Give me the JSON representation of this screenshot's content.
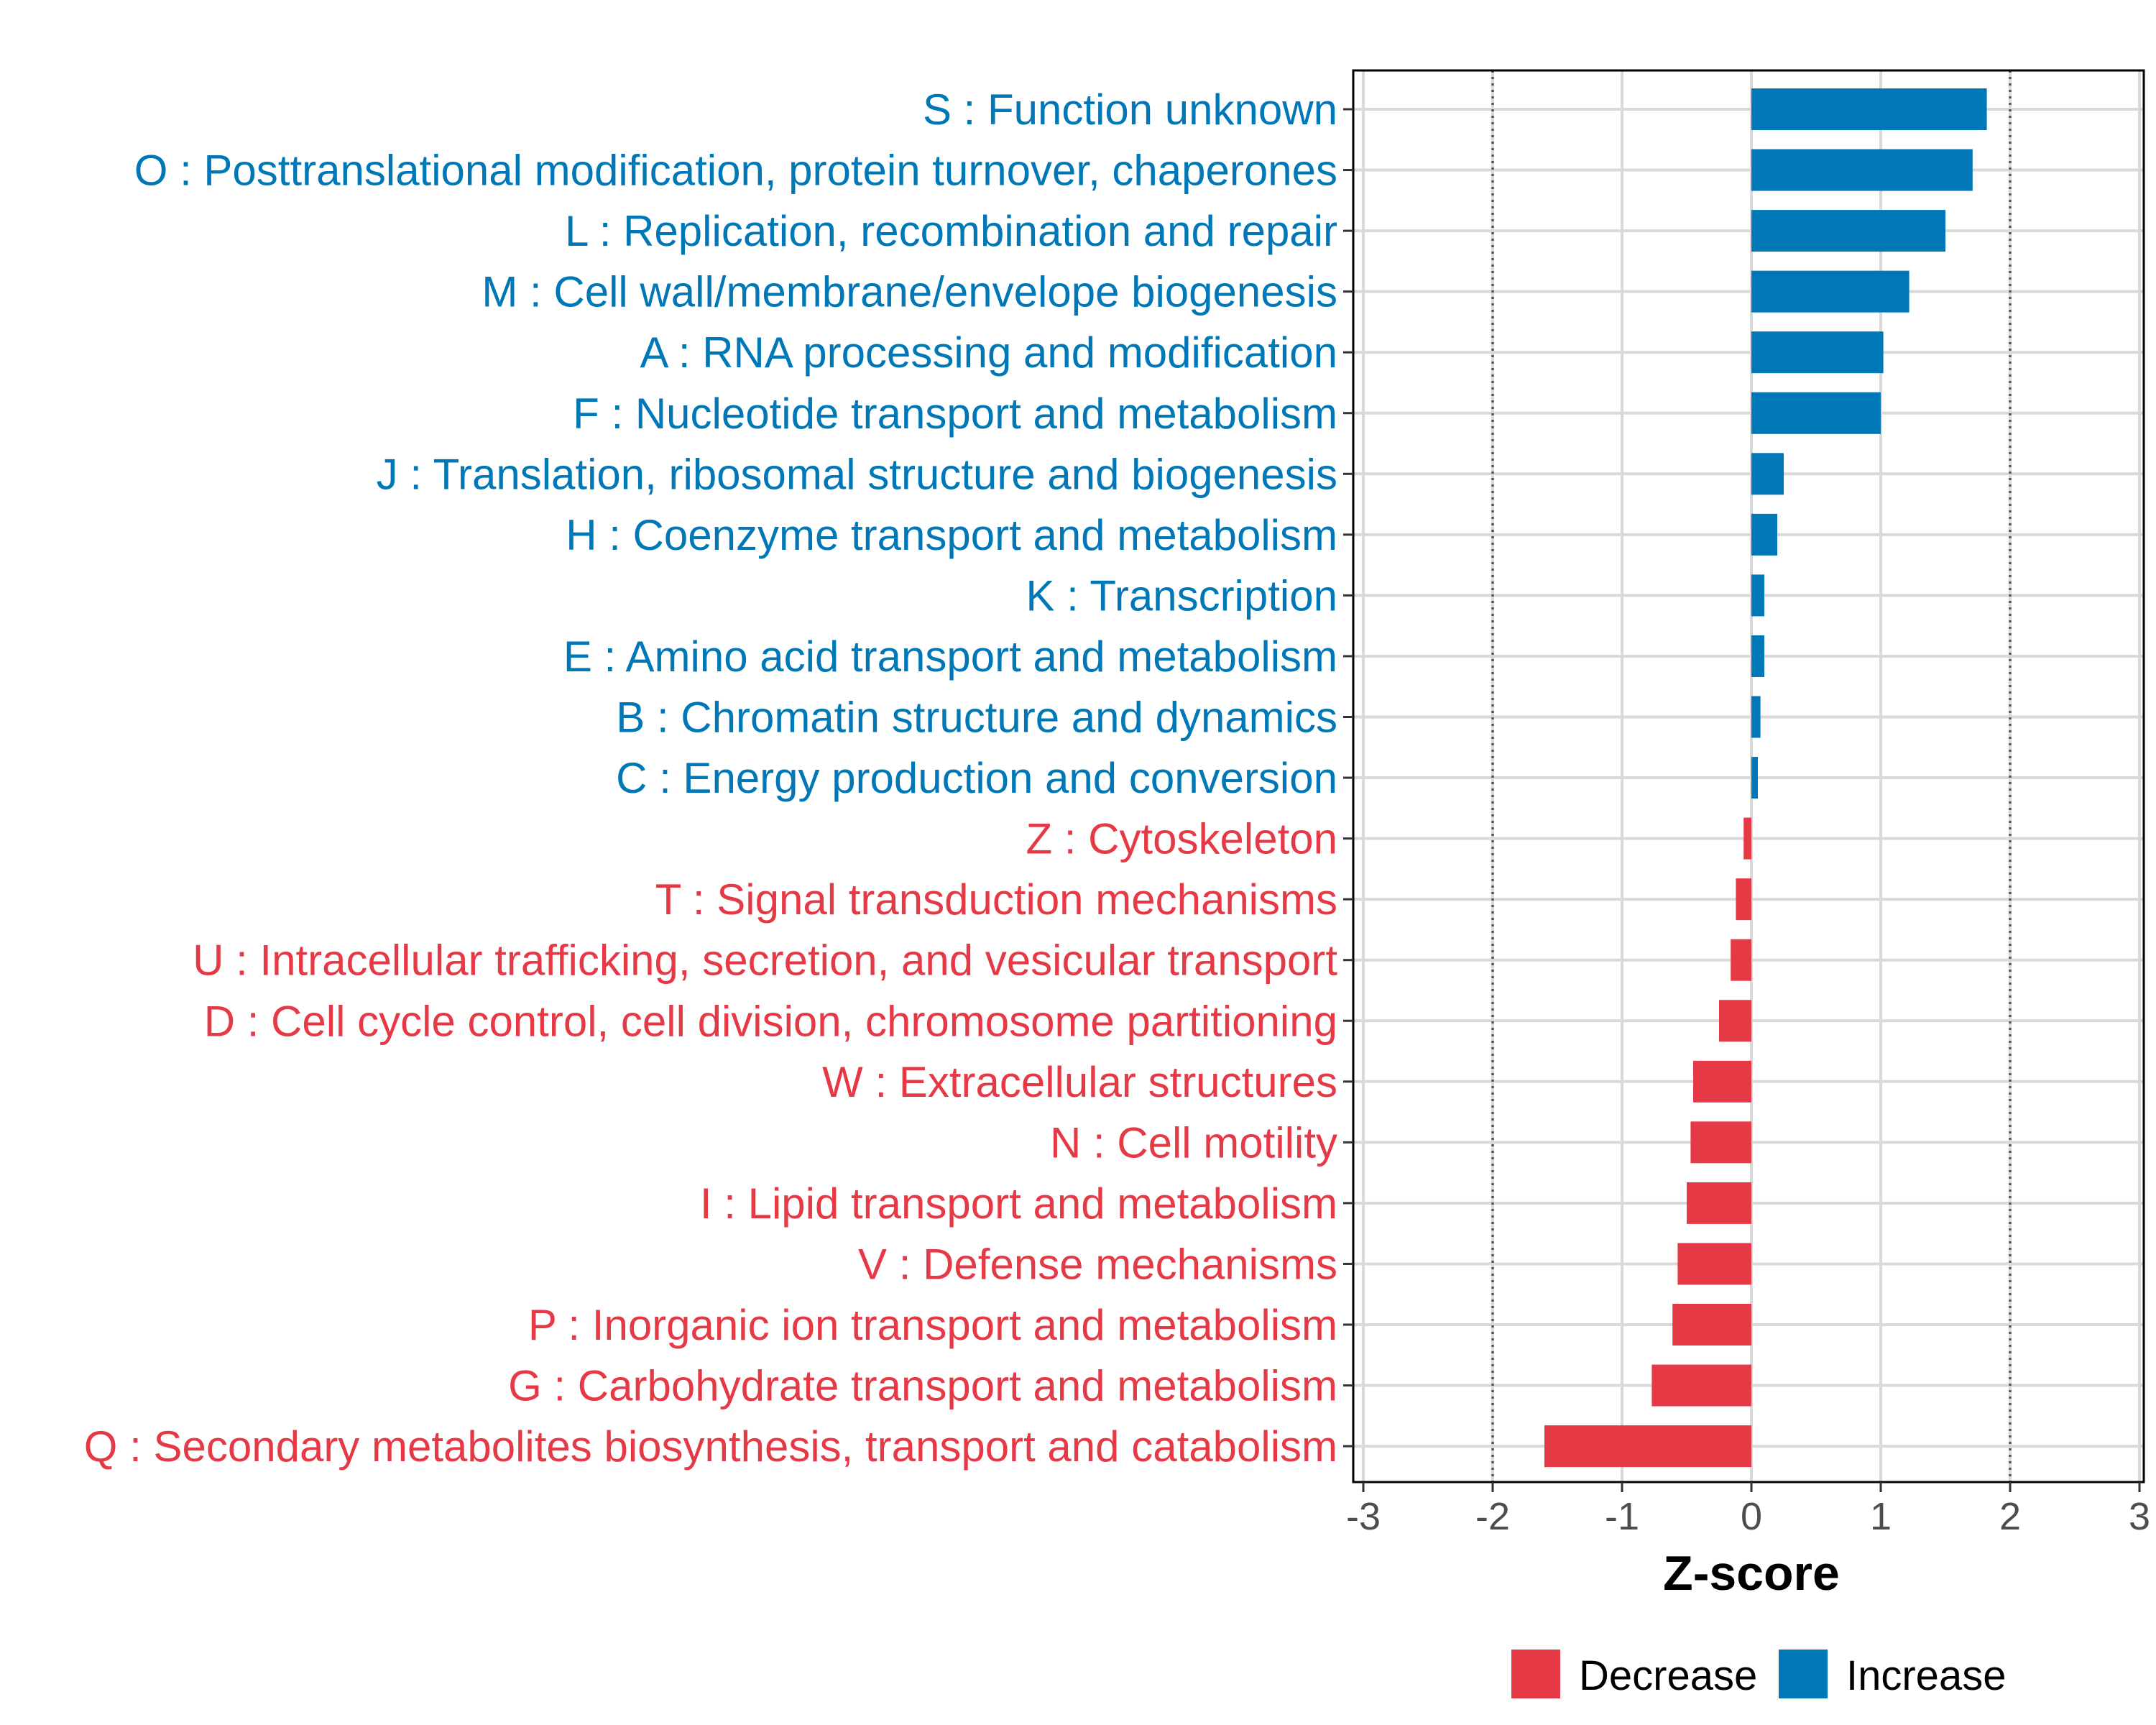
{
  "chart_data": {
    "type": "bar",
    "orientation": "horizontal",
    "title": "",
    "xlabel": "Z-score",
    "ylabel": "",
    "xlim": [
      -3.1,
      3.1
    ],
    "xticks": [
      -3,
      -2,
      -1,
      0,
      1,
      2,
      3
    ],
    "xtick_labels": [
      "-3",
      "-2",
      "-1",
      "0",
      "1",
      "2",
      "3"
    ],
    "reference_lines": [
      -2,
      2
    ],
    "grid": true,
    "legend_position": "bottom",
    "categories": [
      "S : Function unknown",
      "O : Posttranslational modification, protein turnover, chaperones",
      "L : Replication, recombination and repair",
      "M : Cell wall/membrane/envelope biogenesis",
      "A : RNA processing and modification",
      "F : Nucleotide transport and metabolism",
      "J : Translation, ribosomal structure and biogenesis",
      "H : Coenzyme transport and metabolism",
      "K : Transcription",
      "E : Amino acid transport and metabolism",
      "B : Chromatin structure and dynamics",
      "C : Energy production and conversion",
      "Z : Cytoskeleton",
      "T : Signal transduction mechanisms",
      "U : Intracellular trafficking, secretion, and vesicular transport",
      "D : Cell cycle control, cell division, chromosome partitioning",
      "W : Extracellular structures",
      "N : Cell motility",
      "I : Lipid transport and metabolism",
      "V : Defense mechanisms",
      "P : Inorganic ion transport and metabolism",
      "G : Carbohydrate transport and metabolism",
      "Q : Secondary metabolites biosynthesis, transport and catabolism"
    ],
    "values": [
      1.82,
      1.71,
      1.5,
      1.22,
      1.02,
      1.0,
      0.25,
      0.2,
      0.1,
      0.1,
      0.07,
      0.05,
      -0.06,
      -0.12,
      -0.16,
      -0.25,
      -0.45,
      -0.47,
      -0.5,
      -0.57,
      -0.61,
      -0.77,
      -1.6
    ],
    "groups": [
      "Increase",
      "Increase",
      "Increase",
      "Increase",
      "Increase",
      "Increase",
      "Increase",
      "Increase",
      "Increase",
      "Increase",
      "Increase",
      "Increase",
      "Decrease",
      "Decrease",
      "Decrease",
      "Decrease",
      "Decrease",
      "Decrease",
      "Decrease",
      "Decrease",
      "Decrease",
      "Decrease",
      "Decrease"
    ],
    "legend": [
      {
        "name": "Decrease",
        "color": "#E63946"
      },
      {
        "name": "Increase",
        "color": "#0077B6"
      }
    ],
    "colors": {
      "Decrease": "#E63946",
      "Increase": "#0077B6",
      "grid": "#D9D9D9",
      "reference": "#555555",
      "axis": "#000000"
    }
  }
}
